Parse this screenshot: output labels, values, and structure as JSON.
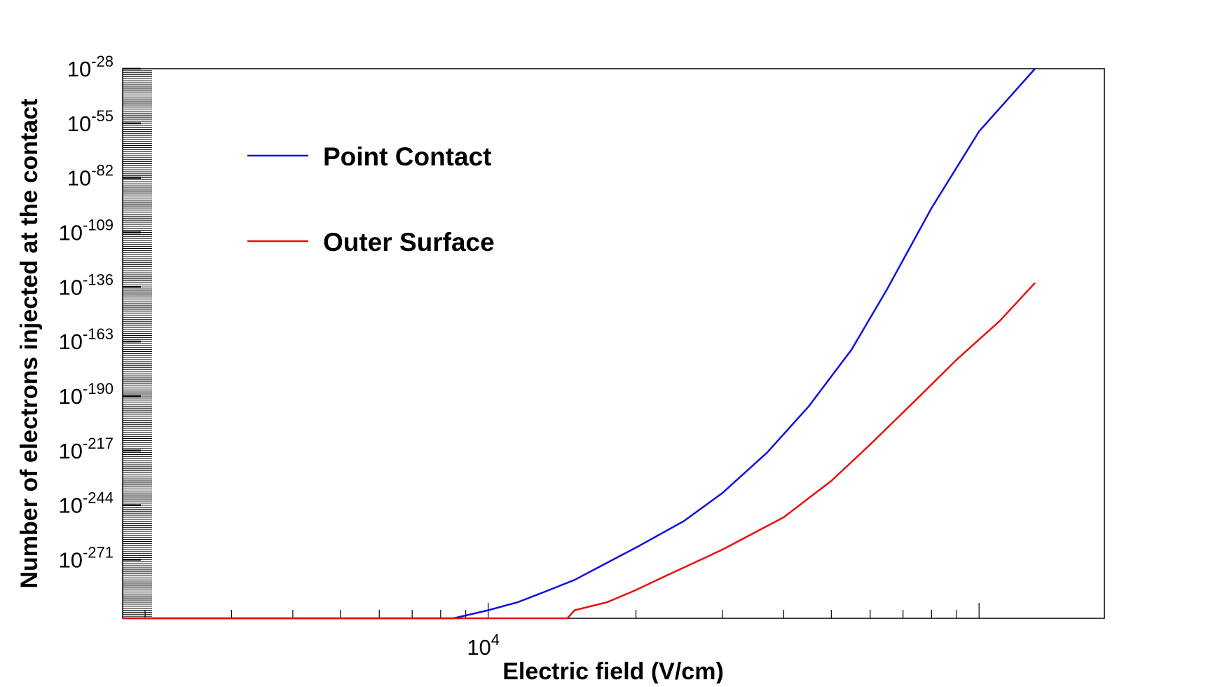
{
  "chart_data": {
    "type": "line",
    "xlabel": "Electric field (V/cm)",
    "ylabel": "Number of electrons injected at the contact",
    "x_scale": "log",
    "y_scale": "log",
    "xlim": [
      1800,
      180000
    ],
    "ylim_exponent": [
      -300,
      -28
    ],
    "grid": false,
    "legend_position": "upper-left",
    "x_tick_labels": [
      {
        "value": 10000,
        "base": "10",
        "exp": "4"
      }
    ],
    "y_tick_labels": [
      {
        "value_exponent": -28,
        "base": "10",
        "exp": "-28"
      },
      {
        "value_exponent": -55,
        "base": "10",
        "exp": "-55"
      },
      {
        "value_exponent": -82,
        "base": "10",
        "exp": "-82"
      },
      {
        "value_exponent": -109,
        "base": "10",
        "exp": "-109"
      },
      {
        "value_exponent": -136,
        "base": "10",
        "exp": "-136"
      },
      {
        "value_exponent": -163,
        "base": "10",
        "exp": "-163"
      },
      {
        "value_exponent": -190,
        "base": "10",
        "exp": "-190"
      },
      {
        "value_exponent": -217,
        "base": "10",
        "exp": "-217"
      },
      {
        "value_exponent": -244,
        "base": "10",
        "exp": "-244"
      },
      {
        "value_exponent": -271,
        "base": "10",
        "exp": "-271"
      }
    ],
    "series": [
      {
        "name": "Point Contact",
        "color": "#1010e0",
        "points": [
          [
            1800,
            -300
          ],
          [
            5000,
            -300
          ],
          [
            8500,
            -300
          ],
          [
            10000,
            -296
          ],
          [
            11500,
            -292
          ],
          [
            13000,
            -287
          ],
          [
            15000,
            -281
          ],
          [
            17000,
            -274
          ],
          [
            20000,
            -265
          ],
          [
            25000,
            -252
          ],
          [
            30000,
            -238
          ],
          [
            37000,
            -218
          ],
          [
            45000,
            -195
          ],
          [
            55000,
            -167
          ],
          [
            65000,
            -137
          ],
          [
            80000,
            -97
          ],
          [
            100000,
            -59
          ],
          [
            130000,
            -28
          ]
        ]
      },
      {
        "name": "Outer Surface",
        "color": "#e81010",
        "points": [
          [
            1800,
            -300
          ],
          [
            10000,
            -300
          ],
          [
            14500,
            -300
          ],
          [
            15000,
            -296
          ],
          [
            17500,
            -292
          ],
          [
            20000,
            -286
          ],
          [
            23000,
            -279
          ],
          [
            26000,
            -273
          ],
          [
            30000,
            -266
          ],
          [
            40000,
            -250
          ],
          [
            50000,
            -232
          ],
          [
            60000,
            -214
          ],
          [
            75000,
            -191
          ],
          [
            90000,
            -172
          ],
          [
            110000,
            -153
          ],
          [
            130000,
            -134
          ]
        ]
      }
    ]
  }
}
